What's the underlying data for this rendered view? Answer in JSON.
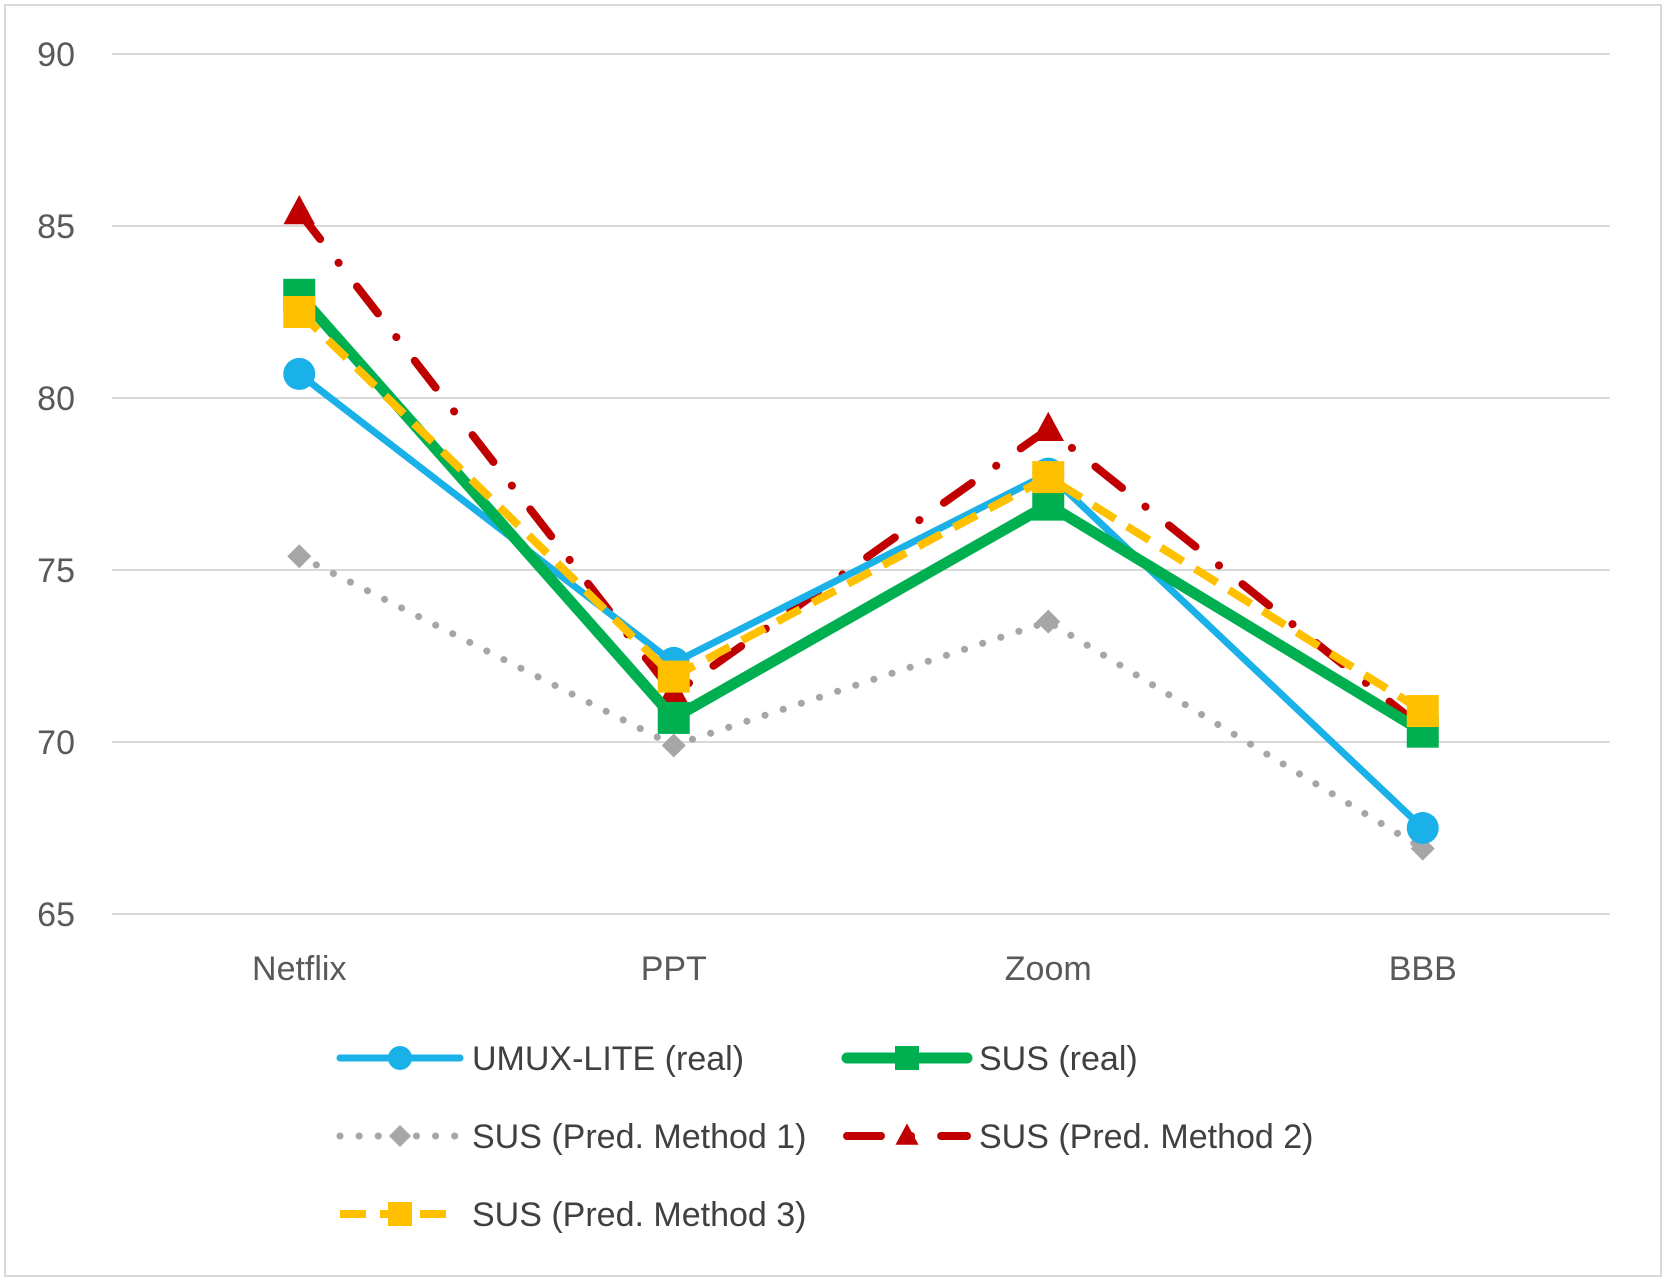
{
  "chart_data": {
    "type": "line",
    "title": "",
    "xlabel": "",
    "ylabel": "",
    "categories": [
      "Netflix",
      "PPT",
      "Zoom",
      "BBB"
    ],
    "ylim": [
      65,
      90
    ],
    "yticks": [
      "65",
      "70",
      "75",
      "80",
      "85",
      "90"
    ],
    "grid": true,
    "legend_position": "bottom",
    "series": [
      {
        "name": "UMUX-LITE (real)",
        "values": [
          80.7,
          72.3,
          77.8,
          67.5
        ],
        "color": "#1ab0e8",
        "marker": "circle",
        "line": "solid"
      },
      {
        "name": "SUS (real)",
        "values": [
          83.0,
          70.7,
          76.9,
          70.3
        ],
        "color": "#00b050",
        "marker": "square",
        "line": "solid"
      },
      {
        "name": "SUS (Pred. Method 1)",
        "values": [
          75.4,
          69.9,
          73.5,
          66.9
        ],
        "color": "#a6a6a6",
        "marker": "diamond",
        "line": "dotted"
      },
      {
        "name": "SUS (Pred. Method 2)",
        "values": [
          85.4,
          71.4,
          79.1,
          70.4
        ],
        "color": "#c00000",
        "marker": "triangle",
        "line": "dashdot"
      },
      {
        "name": "SUS (Pred. Method 3)",
        "values": [
          82.5,
          71.9,
          77.7,
          70.9
        ],
        "color": "#ffc000",
        "marker": "square",
        "line": "dashed"
      }
    ]
  }
}
